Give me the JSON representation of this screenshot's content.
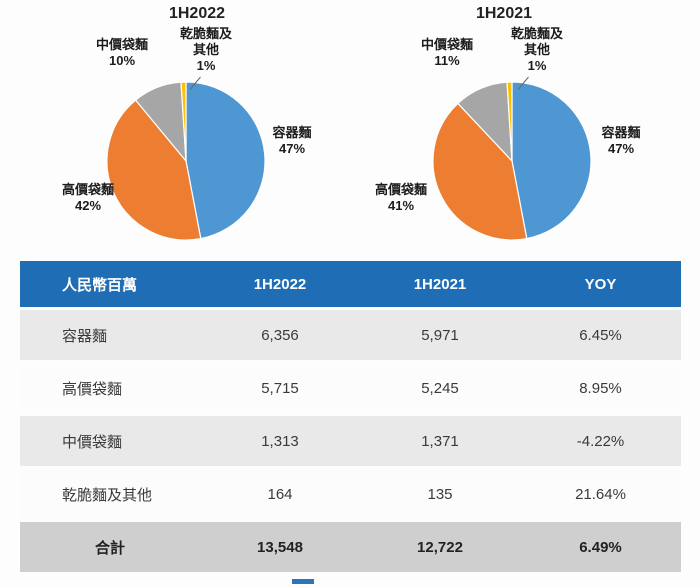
{
  "chart_data": [
    {
      "type": "pie",
      "title": "1H2022",
      "labels": [
        "容器麵",
        "高價袋麵",
        "中價袋麵",
        "乾脆麵及其他"
      ],
      "values": [
        47,
        42,
        10,
        1
      ],
      "pct_labels": [
        "47%",
        "42%",
        "10%",
        "1%"
      ],
      "colors": [
        "#4f97d3",
        "#ed7d31",
        "#a6a6a6",
        "#ffc000"
      ],
      "legend": "none",
      "label_position": "outside",
      "start_angle_deg": -90,
      "direction": "clockwise"
    },
    {
      "type": "pie",
      "title": "1H2021",
      "labels": [
        "容器麵",
        "高價袋麵",
        "中價袋麵",
        "乾脆麵及其他"
      ],
      "values": [
        47,
        41,
        11,
        1
      ],
      "pct_labels": [
        "47%",
        "41%",
        "11%",
        "1%"
      ],
      "colors": [
        "#4f97d3",
        "#ed7d31",
        "#a6a6a6",
        "#ffc000"
      ],
      "legend": "none",
      "label_position": "outside",
      "start_angle_deg": -90,
      "direction": "clockwise"
    }
  ],
  "table": {
    "header": [
      "人民幣百萬",
      "1H2022",
      "1H2021",
      "YOY"
    ],
    "rows": [
      {
        "label": "容器麵",
        "values": [
          "6,356",
          "5,971",
          "6.45%"
        ]
      },
      {
        "label": "高價袋麵",
        "values": [
          "5,715",
          "5,245",
          "8.95%"
        ]
      },
      {
        "label": "中價袋麵",
        "values": [
          "1,313",
          "1,371",
          "-4.22%"
        ]
      },
      {
        "label": "乾脆麵及其他",
        "values": [
          "164",
          "135",
          "21.64%"
        ]
      }
    ],
    "total": {
      "label": "合計",
      "values": [
        "13,548",
        "12,722",
        "6.49%"
      ]
    }
  },
  "colors": {
    "header_bg": "#1f6eb5",
    "row_alt_bg": "#e9e9e9",
    "row_plain_bg": "#fcfcfc",
    "total_row_bg": "#cfcfcf",
    "pie_blue": "#4f97d3",
    "pie_orange": "#ed7d31",
    "pie_gray": "#a6a6a6",
    "pie_yellow": "#ffc000"
  }
}
